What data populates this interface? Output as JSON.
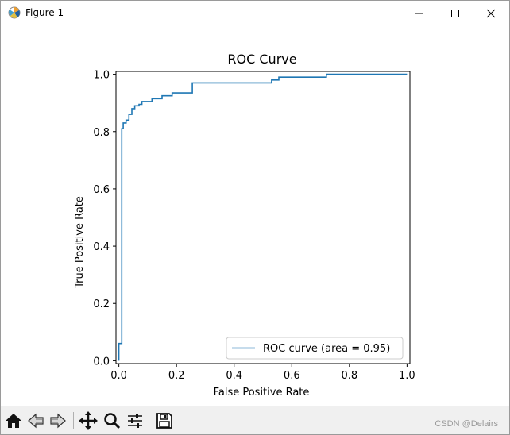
{
  "window": {
    "title": "Figure 1",
    "controls": {
      "minimize": "minimize",
      "maximize": "maximize",
      "close": "close"
    }
  },
  "toolbar": {
    "icons": [
      "home-icon",
      "back-icon",
      "forward-icon",
      "pan-icon",
      "zoom-icon",
      "configure-subplots-icon",
      "save-icon"
    ]
  },
  "watermark": "CSDN @Delairs",
  "colors": {
    "line": "#1f77b4",
    "toolbar_bg": "#f0f0f0"
  },
  "chart_data": {
    "type": "line",
    "title": "ROC Curve",
    "xlabel": "False Positive Rate",
    "ylabel": "True Positive Rate",
    "xlim": [
      -0.01,
      1.01
    ],
    "ylim": [
      -0.01,
      1.01
    ],
    "xticks": [
      "0.0",
      "0.2",
      "0.4",
      "0.6",
      "0.8",
      "1.0"
    ],
    "yticks": [
      "0.0",
      "0.2",
      "0.4",
      "0.6",
      "0.8",
      "1.0"
    ],
    "legend": {
      "label": "ROC curve (area = 0.95)",
      "position": "lower right"
    },
    "series": [
      {
        "name": "ROC curve (area = 0.95)",
        "x": [
          0.0,
          0.0,
          0.01,
          0.01,
          0.015,
          0.015,
          0.025,
          0.025,
          0.035,
          0.035,
          0.045,
          0.045,
          0.055,
          0.055,
          0.07,
          0.07,
          0.08,
          0.08,
          0.115,
          0.115,
          0.15,
          0.15,
          0.185,
          0.185,
          0.255,
          0.255,
          0.275,
          0.275,
          0.53,
          0.53,
          0.555,
          0.555,
          0.72,
          0.72,
          1.0
        ],
        "y": [
          0.0,
          0.06,
          0.06,
          0.81,
          0.81,
          0.83,
          0.83,
          0.84,
          0.84,
          0.86,
          0.86,
          0.88,
          0.88,
          0.89,
          0.89,
          0.895,
          0.895,
          0.905,
          0.905,
          0.915,
          0.915,
          0.925,
          0.925,
          0.935,
          0.935,
          0.97,
          0.97,
          0.97,
          0.97,
          0.98,
          0.98,
          0.99,
          0.99,
          1.0,
          1.0
        ]
      }
    ]
  }
}
